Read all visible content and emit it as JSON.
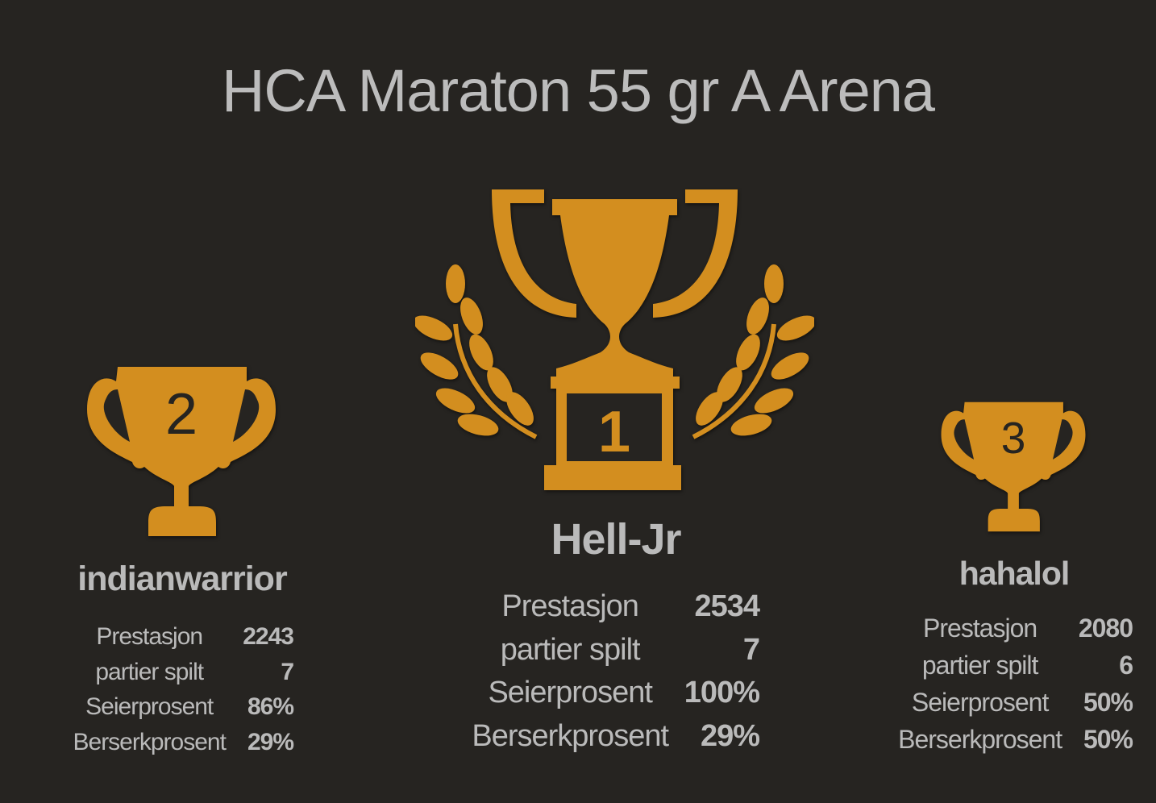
{
  "title": "HCA Maraton 55 gr A Arena",
  "colors": {
    "gold": "#d38e1f",
    "background": "#262421"
  },
  "podium": [
    {
      "rank": "2",
      "name": "indianwarrior",
      "stats": [
        {
          "label": "Prestasjon",
          "value": "2243"
        },
        {
          "label": "partier spilt",
          "value": "7"
        },
        {
          "label": "Seierprosent",
          "value": "86%"
        },
        {
          "label": "Berserkprosent",
          "value": "29%"
        }
      ]
    },
    {
      "rank": "1",
      "name": "Hell-Jr",
      "stats": [
        {
          "label": "Prestasjon",
          "value": "2534"
        },
        {
          "label": "partier spilt",
          "value": "7"
        },
        {
          "label": "Seierprosent",
          "value": "100%"
        },
        {
          "label": "Berserkprosent",
          "value": "29%"
        }
      ]
    },
    {
      "rank": "3",
      "name": "hahalol",
      "stats": [
        {
          "label": "Prestasjon",
          "value": "2080"
        },
        {
          "label": "partier spilt",
          "value": "6"
        },
        {
          "label": "Seierprosent",
          "value": "50%"
        },
        {
          "label": "Berserkprosent",
          "value": "50%"
        }
      ]
    }
  ]
}
